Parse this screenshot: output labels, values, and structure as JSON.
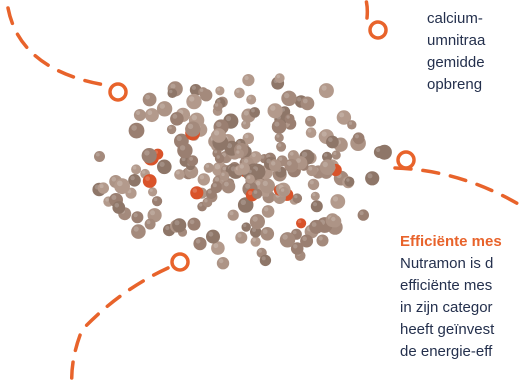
{
  "colors": {
    "accent": "#e8632b",
    "text": "#24304d",
    "granule_brown": "#a48a7c",
    "granule_orange": "#d9532a"
  },
  "image": {
    "icon": "fertilizer-granules-image"
  },
  "text_top": {
    "lines": [
      "calcium-",
      "umnitraa",
      "gemidde",
      "opbreng"
    ]
  },
  "text_bottom": {
    "heading": "Efficiënte mes",
    "lines": [
      "Nutramon is d",
      "efficiënte mes",
      "in zijn categor",
      "heeft geïnvest",
      "de energie-eff"
    ]
  }
}
